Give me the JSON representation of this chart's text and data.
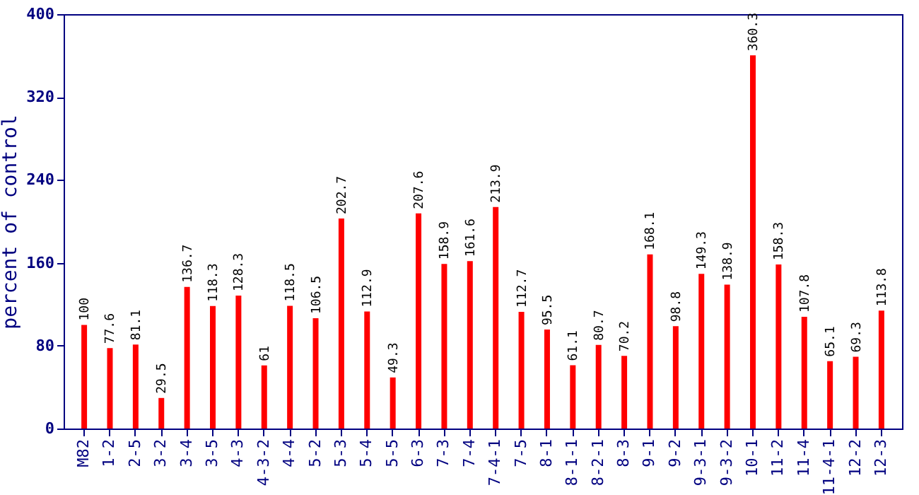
{
  "chart_data": {
    "type": "bar",
    "ylabel": "percent of control",
    "categories": [
      "M82",
      "1-2",
      "2-5",
      "3-2",
      "3-4",
      "3-5",
      "4-3",
      "4-3-2",
      "4-4",
      "5-2",
      "5-3",
      "5-4",
      "5-5",
      "6-3",
      "7-3",
      "7-4",
      "7-4-1",
      "7-5",
      "8-1",
      "8-1-1",
      "8-2-1",
      "8-3",
      "9-1",
      "9-2",
      "9-3-1",
      "9-3-2",
      "10-1",
      "11-2",
      "11-4",
      "11-4-1",
      "12-2",
      "12-3"
    ],
    "values": [
      100,
      77.6,
      81.1,
      29.5,
      136.7,
      118.3,
      128.3,
      61,
      118.5,
      106.5,
      202.7,
      112.9,
      49.3,
      207.6,
      158.9,
      161.6,
      213.9,
      112.7,
      95.5,
      61.1,
      80.7,
      70.2,
      168.1,
      98.8,
      149.3,
      138.9,
      360.3,
      158.3,
      107.8,
      65.1,
      69.3,
      113.8
    ],
    "color": "#ff0000",
    "ylim": [
      0,
      400
    ],
    "yticks": [
      0,
      80,
      160,
      240,
      320,
      400
    ],
    "data_labels": true,
    "grid": false
  }
}
